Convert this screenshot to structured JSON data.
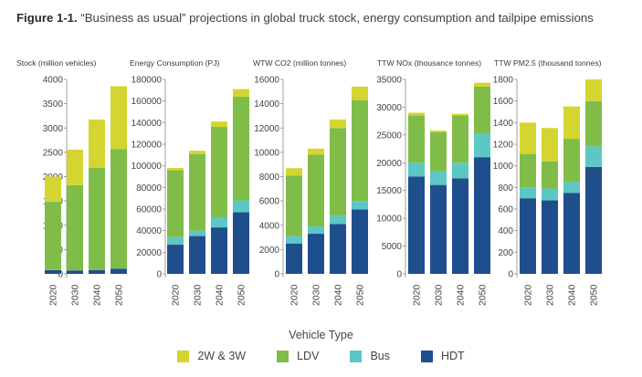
{
  "figure": {
    "label": "Figure 1-1.",
    "caption": "“Business as usual” projections in global truck stock, energy consumption and tailpipe emissions"
  },
  "x_title": "Vehicle Type",
  "colors": {
    "2W & 3W": "#d4d531",
    "LDV": "#7fbd48",
    "Bus": "#5cc7c5",
    "HDT": "#1f4e8c"
  },
  "legend": [
    "2W & 3W",
    "LDV",
    "Bus",
    "HDT"
  ],
  "chart_data": [
    {
      "type": "bar",
      "stacked": true,
      "title": "Stock (million vehicles)",
      "categories": [
        "2020",
        "2030",
        "2040",
        "2050"
      ],
      "ylim": [
        0,
        4000
      ],
      "yticks": [
        0,
        500,
        1000,
        1500,
        2000,
        2500,
        3000,
        3500,
        4000
      ],
      "series": [
        {
          "name": "HDT",
          "values": [
            75,
            70,
            80,
            105
          ]
        },
        {
          "name": "Bus",
          "values": [
            5,
            5,
            5,
            5
          ]
        },
        {
          "name": "LDV",
          "values": [
            1400,
            1750,
            2100,
            2460
          ]
        },
        {
          "name": "2W & 3W",
          "values": [
            520,
            730,
            990,
            1290
          ]
        }
      ]
    },
    {
      "type": "bar",
      "stacked": true,
      "title": "Energy Consumption (PJ)",
      "categories": [
        "2020",
        "2030",
        "2040",
        "2050"
      ],
      "ylim": [
        0,
        180000
      ],
      "yticks": [
        0,
        20000,
        40000,
        60000,
        80000,
        100000,
        120000,
        140000,
        160000,
        180000
      ],
      "series": [
        {
          "name": "HDT",
          "values": [
            27000,
            35000,
            43000,
            57000
          ]
        },
        {
          "name": "Bus",
          "values": [
            7000,
            5000,
            9000,
            11000
          ]
        },
        {
          "name": "LDV",
          "values": [
            62000,
            71000,
            84000,
            96000
          ]
        },
        {
          "name": "2W & 3W",
          "values": [
            2000,
            3000,
            5000,
            7000
          ]
        }
      ]
    },
    {
      "type": "bar",
      "stacked": true,
      "title": "WTW CO2 (million tonnes)",
      "categories": [
        "2020",
        "2030",
        "2040",
        "2050"
      ],
      "ylim": [
        0,
        16000
      ],
      "yticks": [
        0,
        2000,
        4000,
        6000,
        8000,
        10000,
        12000,
        14000,
        16000
      ],
      "series": [
        {
          "name": "HDT",
          "values": [
            2500,
            3300,
            4100,
            5300
          ]
        },
        {
          "name": "Bus",
          "values": [
            600,
            600,
            700,
            700
          ]
        },
        {
          "name": "LDV",
          "values": [
            5000,
            5900,
            7200,
            8300
          ]
        },
        {
          "name": "2W & 3W",
          "values": [
            600,
            500,
            700,
            1100
          ]
        }
      ]
    },
    {
      "type": "bar",
      "stacked": true,
      "title": "TTW NOx (thousance tonnes)",
      "categories": [
        "2020",
        "2030",
        "2040",
        "2050"
      ],
      "ylim": [
        0,
        35000
      ],
      "yticks": [
        0,
        5000,
        10000,
        15000,
        20000,
        25000,
        30000,
        35000
      ],
      "series": [
        {
          "name": "HDT",
          "values": [
            17500,
            16000,
            17200,
            21000
          ]
        },
        {
          "name": "Bus",
          "values": [
            2500,
            2500,
            2800,
            4200
          ]
        },
        {
          "name": "LDV",
          "values": [
            8500,
            7000,
            8500,
            8500
          ]
        },
        {
          "name": "2W & 3W",
          "values": [
            500,
            300,
            300,
            700
          ]
        }
      ]
    },
    {
      "type": "bar",
      "stacked": true,
      "title": "TTW PM2.5 (thousand tonnes)",
      "categories": [
        "2020",
        "2030",
        "2040",
        "2050"
      ],
      "ylim": [
        0,
        1800
      ],
      "yticks": [
        0,
        200,
        400,
        600,
        800,
        1000,
        1200,
        1400,
        1600,
        1800
      ],
      "series": [
        {
          "name": "HDT",
          "values": [
            700,
            680,
            750,
            990
          ]
        },
        {
          "name": "Bus",
          "values": [
            100,
            110,
            100,
            190
          ]
        },
        {
          "name": "LDV",
          "values": [
            310,
            250,
            400,
            420
          ]
        },
        {
          "name": "2W & 3W",
          "values": [
            290,
            310,
            300,
            200
          ]
        }
      ]
    }
  ]
}
